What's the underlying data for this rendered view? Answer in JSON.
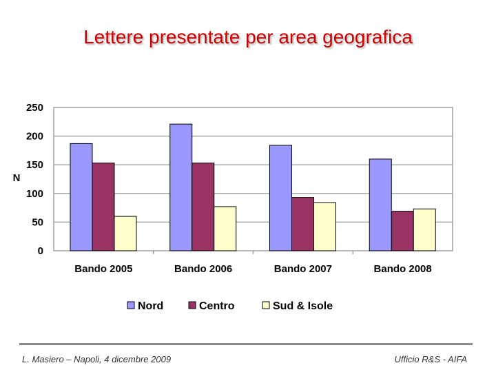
{
  "slide": {
    "title": "Lettere presentate per area geografica",
    "footer_left": "L. Masiero – Napoli, 4 dicembre 2009",
    "footer_right": "Ufficio R&S - AIFA",
    "title_color": "#cc0000"
  },
  "chart_data": {
    "type": "bar",
    "title": "",
    "xlabel": "",
    "ylabel": "N",
    "ylim": [
      0,
      250
    ],
    "yticks": [
      0,
      50,
      100,
      150,
      200,
      250
    ],
    "grid": true,
    "legend_position": "bottom",
    "categories": [
      "Bando 2005",
      "Bando 2006",
      "Bando 2007",
      "Bando 2008"
    ],
    "series": [
      {
        "name": "Nord",
        "values": [
          187,
          221,
          184,
          160
        ],
        "color": "#9999ff"
      },
      {
        "name": "Centro",
        "values": [
          153,
          153,
          93,
          69
        ],
        "color": "#993366"
      },
      {
        "name": "Sud & Isole",
        "values": [
          60,
          77,
          84,
          73
        ],
        "color": "#ffffcc"
      }
    ]
  }
}
